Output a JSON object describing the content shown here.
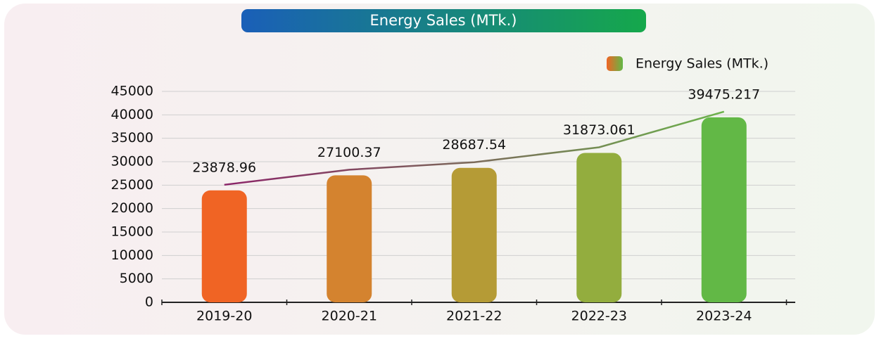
{
  "chart_data": {
    "type": "bar",
    "title": "Energy Sales (MTk.)",
    "categories": [
      "2019-20",
      "2020-21",
      "2021-22",
      "2022-23",
      "2023-24"
    ],
    "series": [
      {
        "name": "Energy Sales (MTk.)",
        "colors": [
          "#f06424",
          "#d4832f",
          "#b59b36",
          "#93ad3e",
          "#62b846"
        ],
        "values": [
          23878.96,
          27100.37,
          28687.54,
          31873.061,
          39475.217
        ]
      }
    ],
    "ylim": [
      0,
      45000
    ],
    "yticks": [
      0,
      5000,
      10000,
      15000,
      20000,
      25000,
      30000,
      35000,
      40000,
      45000
    ],
    "grid": true,
    "legend": "top-right"
  }
}
